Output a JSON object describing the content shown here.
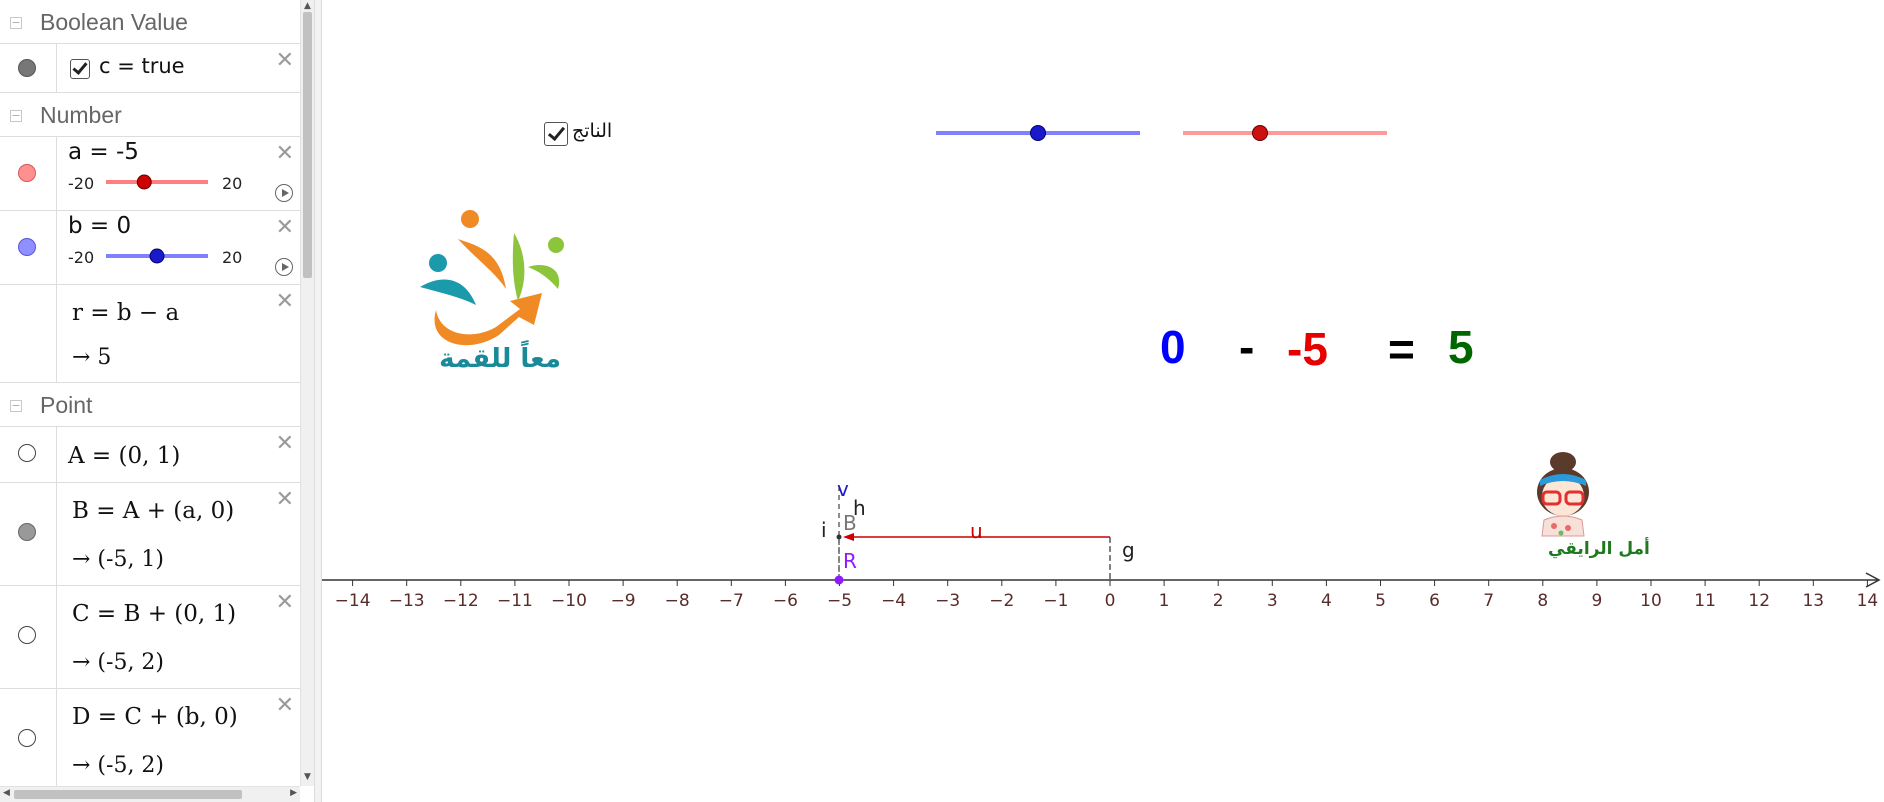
{
  "algebra": {
    "categories": {
      "boolean": "Boolean Value",
      "number": "Number",
      "point": "Point"
    },
    "boolean_c": {
      "text": "c = true",
      "checked": true
    },
    "num_a": {
      "text": "a = -5",
      "min": "-20",
      "max": "20",
      "value": -5,
      "color": "#ff7f7f"
    },
    "num_b": {
      "text": "b = 0",
      "min": "-20",
      "max": "20",
      "value": 0,
      "color": "#7f7fff"
    },
    "num_r": {
      "definition": "r = b − a",
      "result": "→ 5"
    },
    "points": [
      {
        "definition": "A = (0, 1)",
        "result": ""
      },
      {
        "definition": "B = A + (a, 0)",
        "result": "→ (-5, 1)"
      },
      {
        "definition": "C = B + (0, 1)",
        "result": "→ (-5, 2)"
      },
      {
        "definition": "D = C + (b, 0)",
        "result": "→ (-5, 2)"
      }
    ],
    "close_glyph": "✕"
  },
  "graphics": {
    "result_checkbox_label": "الناتج",
    "result_checkbox_checked": true,
    "slider_blue": {
      "value": 0,
      "color": "#7f7fff",
      "point_color": "#1a1acc"
    },
    "slider_red": {
      "value": -5,
      "color": "#ff9a9a",
      "point_color": "#cc1111"
    },
    "equation": {
      "b": "0",
      "minus": "-",
      "a": "-5",
      "equals": "=",
      "result": "5",
      "colors": {
        "b": "#0000ff",
        "a": "#e60000",
        "result": "#006600",
        "op": "#000000"
      }
    },
    "logo_text": "معاً للقمة",
    "author_text": "أمل الرايقي",
    "labels": {
      "v": "v",
      "h": "h",
      "i": "i",
      "B": "B",
      "u": "u",
      "R": "R",
      "g": "g"
    },
    "axis": {
      "min": -14,
      "max": 14,
      "ticks": [
        "−14",
        "−13",
        "−12",
        "−11",
        "−10",
        "−9",
        "−8",
        "−7",
        "−6",
        "−5",
        "−4",
        "−3",
        "−2",
        "−1",
        "0",
        "1",
        "2",
        "3",
        "4",
        "5",
        "6",
        "7",
        "8",
        "9",
        "10",
        "11",
        "12",
        "13",
        "14"
      ]
    },
    "colors": {
      "axis": "#333333",
      "tick_label": "#5a2b2b",
      "vector_u": "#cc0000",
      "point_R": "#8f1aff",
      "label_v": "#1a1acc"
    }
  }
}
